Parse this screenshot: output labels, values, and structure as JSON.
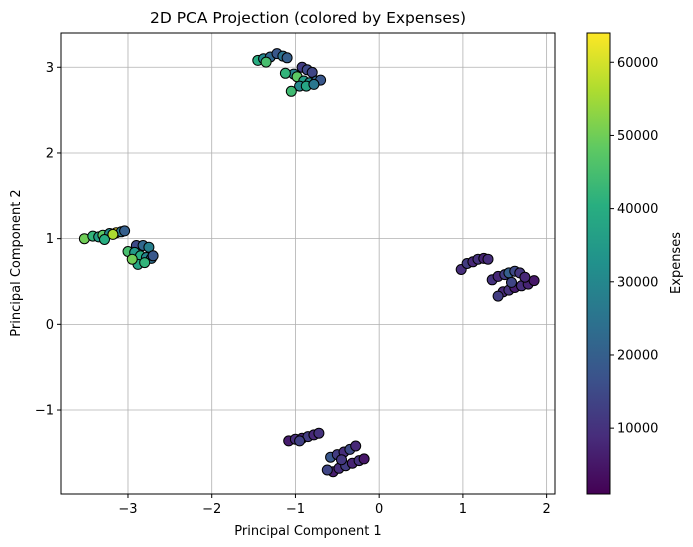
{
  "chart_data": {
    "type": "scatter",
    "title": "2D PCA Projection (colored by Expenses)",
    "xlabel": "Principal Component 1",
    "ylabel": "Principal Component 2",
    "xlim": [
      -3.8,
      2.1
    ],
    "ylim": [
      -1.98,
      3.4
    ],
    "xticks": [
      -3,
      -2,
      -1,
      0,
      1,
      2
    ],
    "yticks": [
      -1,
      0,
      1,
      2,
      3
    ],
    "xtick_labels": [
      "−3",
      "−2",
      "−1",
      "0",
      "1",
      "2"
    ],
    "ytick_labels": [
      "−1",
      "0",
      "1",
      "2",
      "3"
    ],
    "grid": true,
    "colormap": "viridis",
    "marker_edge_color": "#000000",
    "colorbar": {
      "label": "Expenses",
      "range": [
        1000,
        64000
      ],
      "ticks": [
        10000,
        20000,
        30000,
        40000,
        50000,
        60000
      ],
      "tick_labels": [
        "10000",
        "20000",
        "30000",
        "40000",
        "50000",
        "60000"
      ]
    },
    "clusters": [
      {
        "name": "top",
        "points": [
          [
            -1.45,
            3.08,
            40000
          ],
          [
            -1.38,
            3.1,
            30000
          ],
          [
            -1.3,
            3.12,
            22000
          ],
          [
            -1.22,
            3.16,
            18000
          ],
          [
            -1.15,
            3.13,
            25000
          ],
          [
            -1.1,
            3.11,
            20000
          ],
          [
            -1.35,
            3.06,
            45000
          ],
          [
            -0.92,
            3.0,
            12000
          ],
          [
            -0.86,
            2.97,
            15000
          ],
          [
            -0.8,
            2.94,
            14000
          ],
          [
            -1.02,
            2.92,
            28000
          ],
          [
            -1.12,
            2.93,
            42000
          ],
          [
            -0.98,
            2.89,
            48000
          ],
          [
            -0.9,
            2.84,
            36000
          ],
          [
            -0.83,
            2.82,
            32000
          ],
          [
            -0.75,
            2.84,
            22000
          ],
          [
            -0.7,
            2.85,
            18000
          ],
          [
            -0.95,
            2.78,
            30000
          ],
          [
            -0.87,
            2.78,
            38000
          ],
          [
            -1.05,
            2.72,
            44000
          ],
          [
            -0.78,
            2.8,
            26000
          ]
        ]
      },
      {
        "name": "left",
        "points": [
          [
            -3.52,
            1.0,
            50000
          ],
          [
            -3.42,
            1.03,
            42000
          ],
          [
            -3.35,
            1.02,
            36000
          ],
          [
            -3.3,
            1.04,
            48000
          ],
          [
            -3.22,
            1.06,
            30000
          ],
          [
            -3.14,
            1.07,
            64000
          ],
          [
            -3.08,
            1.08,
            26000
          ],
          [
            -3.28,
            0.99,
            40000
          ],
          [
            -3.18,
            1.05,
            56000
          ],
          [
            -3.04,
            1.09,
            20000
          ],
          [
            -3.0,
            0.85,
            45000
          ],
          [
            -2.9,
            0.92,
            15000
          ],
          [
            -2.82,
            0.92,
            22000
          ],
          [
            -2.75,
            0.9,
            28000
          ],
          [
            -2.92,
            0.84,
            35000
          ],
          [
            -2.85,
            0.8,
            40000
          ],
          [
            -2.78,
            0.78,
            30000
          ],
          [
            -2.72,
            0.77,
            24000
          ],
          [
            -2.88,
            0.7,
            38000
          ],
          [
            -2.8,
            0.72,
            42000
          ],
          [
            -2.95,
            0.76,
            50000
          ],
          [
            -2.7,
            0.8,
            18000
          ]
        ]
      },
      {
        "name": "right",
        "points": [
          [
            0.98,
            0.64,
            9000
          ],
          [
            1.05,
            0.71,
            12000
          ],
          [
            1.12,
            0.73,
            8000
          ],
          [
            1.18,
            0.76,
            10000
          ],
          [
            1.25,
            0.77,
            7000
          ],
          [
            1.3,
            0.76,
            9000
          ],
          [
            1.35,
            0.52,
            10000
          ],
          [
            1.42,
            0.56,
            8000
          ],
          [
            1.5,
            0.58,
            12000
          ],
          [
            1.55,
            0.6,
            20000
          ],
          [
            1.62,
            0.62,
            15000
          ],
          [
            1.68,
            0.6,
            11000
          ],
          [
            1.48,
            0.38,
            8000
          ],
          [
            1.55,
            0.4,
            10000
          ],
          [
            1.62,
            0.43,
            6000
          ],
          [
            1.7,
            0.45,
            9000
          ],
          [
            1.78,
            0.47,
            7000
          ],
          [
            1.85,
            0.51,
            5000
          ],
          [
            1.42,
            0.33,
            12000
          ],
          [
            1.74,
            0.55,
            8000
          ],
          [
            1.58,
            0.49,
            14000
          ]
        ]
      },
      {
        "name": "bottom",
        "points": [
          [
            -1.08,
            -1.36,
            6000
          ],
          [
            -1.0,
            -1.34,
            9000
          ],
          [
            -0.92,
            -1.33,
            7000
          ],
          [
            -0.85,
            -1.31,
            12000
          ],
          [
            -0.78,
            -1.29,
            8000
          ],
          [
            -0.72,
            -1.27,
            10000
          ],
          [
            -0.58,
            -1.55,
            18000
          ],
          [
            -0.5,
            -1.52,
            12000
          ],
          [
            -0.42,
            -1.49,
            9000
          ],
          [
            -0.35,
            -1.46,
            15000
          ],
          [
            -0.28,
            -1.42,
            8000
          ],
          [
            -0.55,
            -1.72,
            6000
          ],
          [
            -0.48,
            -1.68,
            9000
          ],
          [
            -0.4,
            -1.65,
            12000
          ],
          [
            -0.32,
            -1.62,
            7000
          ],
          [
            -0.24,
            -1.59,
            10000
          ],
          [
            -0.18,
            -1.57,
            5000
          ],
          [
            -0.62,
            -1.7,
            14000
          ],
          [
            -0.45,
            -1.58,
            11000
          ],
          [
            -0.95,
            -1.36,
            13000
          ]
        ]
      }
    ]
  }
}
